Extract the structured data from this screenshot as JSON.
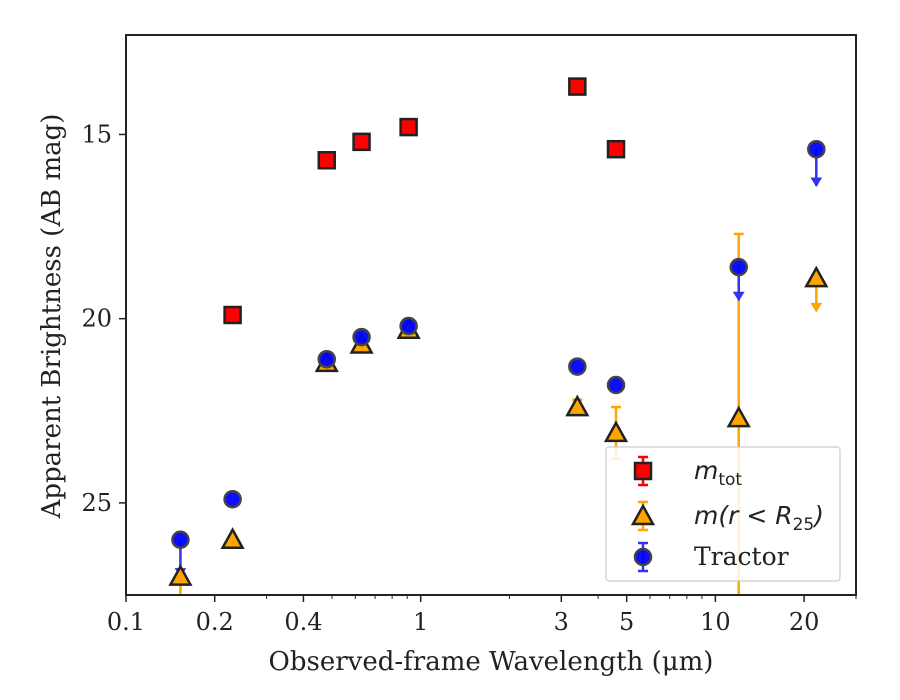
{
  "chart_data": {
    "type": "scatter",
    "xlabel": "Observed-frame Wavelength (μm)",
    "ylabel": "Apparent Brightness (AB mag)",
    "x_scale": "log",
    "y_inverted": true,
    "xlim": [
      0.1,
      30
    ],
    "ylim": [
      27.5,
      12.3
    ],
    "x_ticks": [
      0.1,
      0.2,
      0.4,
      1,
      3,
      5,
      10,
      20
    ],
    "x_tick_labels": [
      "0.1",
      "0.2",
      "0.4",
      "1",
      "3",
      "5",
      "10",
      "20"
    ],
    "y_ticks": [
      15,
      20,
      25
    ],
    "y_tick_labels": [
      "15",
      "20",
      "25"
    ],
    "legend_position": "lower-right",
    "series": [
      {
        "name": "m_tot",
        "legend_main": "m",
        "legend_sub": "tot",
        "marker": "square",
        "color": "#ff0000",
        "edge_color": "#222222",
        "points": [
          {
            "x": 0.23,
            "y": 19.9
          },
          {
            "x": 0.48,
            "y": 15.7
          },
          {
            "x": 0.63,
            "y": 15.2
          },
          {
            "x": 0.91,
            "y": 14.8
          },
          {
            "x": 3.4,
            "y": 13.7
          },
          {
            "x": 4.6,
            "y": 15.4
          }
        ]
      },
      {
        "name": "m(r < R25)",
        "legend_main": "m(r < R",
        "legend_sub": "25",
        "legend_tail": ")",
        "marker": "triangle",
        "color": "#ffa500",
        "edge_color": "#222222",
        "points": [
          {
            "x": 0.153,
            "y": 27.0,
            "err_low": 1.0,
            "err_high": 0
          },
          {
            "x": 0.23,
            "y": 26.0
          },
          {
            "x": 0.48,
            "y": 21.2
          },
          {
            "x": 0.63,
            "y": 20.7
          },
          {
            "x": 0.91,
            "y": 20.3
          },
          {
            "x": 3.4,
            "y": 22.4,
            "err_low": 0.2,
            "err_high": 0.2
          },
          {
            "x": 4.6,
            "y": 23.1,
            "err_low": 0.7,
            "err_high": 0.7
          },
          {
            "x": 12.0,
            "y": 22.7,
            "err_low": 7.9,
            "err_high": 5.0
          },
          {
            "x": 22.0,
            "y": 18.9,
            "upper_limit": true,
            "arrow_to": 19.8
          }
        ]
      },
      {
        "name": "Tractor",
        "legend_main": "Tractor",
        "marker": "circle",
        "color": "#0000ff",
        "edge_color": "#444444",
        "points": [
          {
            "x": 0.153,
            "y": 26.0,
            "upper_limit": true,
            "arrow_to": 27.0
          },
          {
            "x": 0.23,
            "y": 24.9
          },
          {
            "x": 0.48,
            "y": 21.1
          },
          {
            "x": 0.63,
            "y": 20.5
          },
          {
            "x": 0.91,
            "y": 20.2
          },
          {
            "x": 3.4,
            "y": 21.3
          },
          {
            "x": 4.6,
            "y": 21.8
          },
          {
            "x": 12.0,
            "y": 18.6,
            "upper_limit": true,
            "arrow_to": 19.5
          },
          {
            "x": 22.0,
            "y": 15.4,
            "upper_limit": true,
            "arrow_to": 16.4
          }
        ]
      }
    ]
  }
}
